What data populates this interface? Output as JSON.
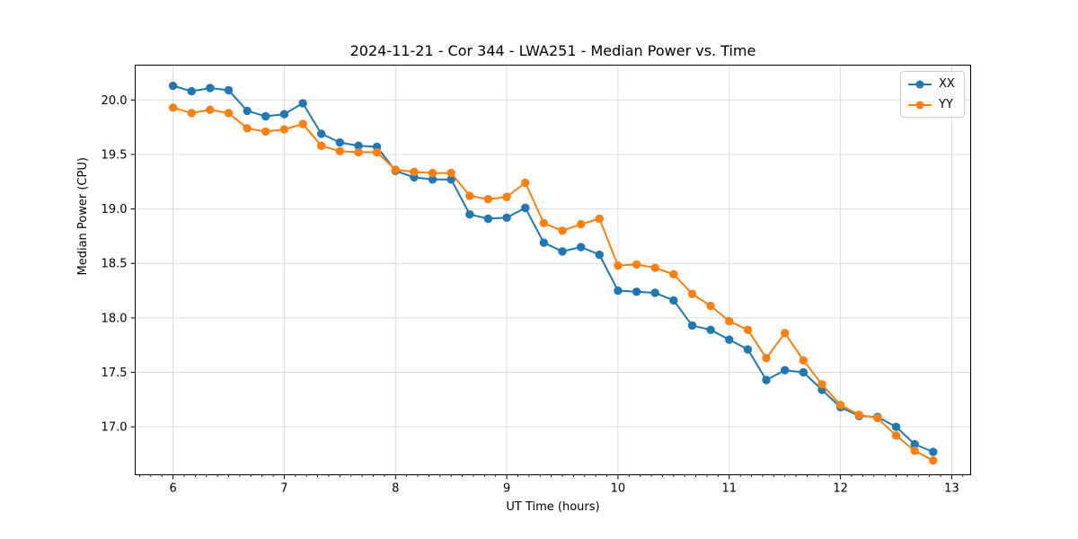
{
  "figure": {
    "title": "2024-11-21 - Cor 344 - LWA251 - Median Power vs. Time"
  },
  "chart_data": {
    "type": "line",
    "title": "2024-11-21 - Cor 344 - LWA251 - Median Power vs. Time",
    "xlabel": "UT Time (hours)",
    "ylabel": "Median Power (CPU)",
    "xlim": [
      5.66,
      13.17
    ],
    "ylim": [
      16.56,
      20.32
    ],
    "x_ticks": [
      6,
      7,
      8,
      9,
      10,
      11,
      12,
      13
    ],
    "y_ticks": [
      17.0,
      17.5,
      18.0,
      18.5,
      19.0,
      19.5,
      20.0
    ],
    "x_minor_step": 0.1,
    "grid": true,
    "legend_position": "upper right",
    "x": [
      6.0,
      6.167,
      6.333,
      6.5,
      6.667,
      6.833,
      7.0,
      7.167,
      7.333,
      7.5,
      7.667,
      7.833,
      8.0,
      8.167,
      8.333,
      8.5,
      8.667,
      8.833,
      9.0,
      9.167,
      9.333,
      9.5,
      9.667,
      9.833,
      10.0,
      10.167,
      10.333,
      10.5,
      10.667,
      10.833,
      11.0,
      11.167,
      11.333,
      11.5,
      11.667,
      11.833,
      12.0,
      12.167,
      12.333,
      12.5,
      12.667,
      12.833
    ],
    "series": [
      {
        "name": "XX",
        "color": "#1f77b4",
        "values": [
          20.13,
          20.08,
          20.11,
          20.09,
          19.9,
          19.85,
          19.87,
          19.97,
          19.69,
          19.61,
          19.58,
          19.57,
          19.35,
          19.29,
          19.27,
          19.27,
          18.95,
          18.91,
          18.92,
          19.01,
          18.69,
          18.61,
          18.65,
          18.58,
          18.25,
          18.24,
          18.23,
          18.16,
          17.93,
          17.89,
          17.8,
          17.71,
          17.43,
          17.52,
          17.5,
          17.34,
          17.18,
          17.1,
          17.09,
          17.0,
          16.84,
          16.77
        ]
      },
      {
        "name": "YY",
        "color": "#ff7f0e",
        "values": [
          19.93,
          19.88,
          19.91,
          19.88,
          19.74,
          19.71,
          19.73,
          19.78,
          19.58,
          19.53,
          19.52,
          19.52,
          19.36,
          19.34,
          19.33,
          19.33,
          19.12,
          19.09,
          19.11,
          19.24,
          18.87,
          18.8,
          18.86,
          18.91,
          18.48,
          18.49,
          18.46,
          18.4,
          18.22,
          18.11,
          17.97,
          17.89,
          17.63,
          17.86,
          17.61,
          17.39,
          17.2,
          17.11,
          17.08,
          16.92,
          16.78,
          16.69
        ]
      }
    ],
    "colors": {
      "grid": "#dcdcdc",
      "spine": "#000000",
      "tick": "#000000",
      "background": "#ffffff"
    }
  }
}
